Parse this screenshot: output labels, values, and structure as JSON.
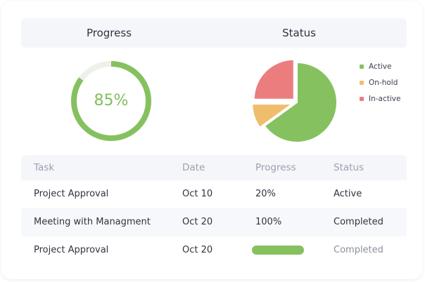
{
  "header": {
    "progress_title": "Progress",
    "status_title": "Status"
  },
  "progress": {
    "label": "85%",
    "value": 85,
    "color": "#86c15f",
    "track_color": "#eef0ec"
  },
  "status_chart": {
    "legend": [
      {
        "label": "Active",
        "color": "#86c15f"
      },
      {
        "label": "On-hold",
        "color": "#f0bd6c"
      },
      {
        "label": "In-active",
        "color": "#ec7d7f"
      }
    ]
  },
  "chart_data": [
    {
      "type": "pie",
      "title": "Progress",
      "values": [
        85,
        15
      ],
      "display": "donut"
    },
    {
      "type": "pie",
      "title": "Status",
      "categories": [
        "Active",
        "On-hold",
        "In-active"
      ],
      "values": [
        65,
        10,
        25
      ],
      "legend_position": "right"
    }
  ],
  "table": {
    "headers": {
      "task": "Task",
      "date": "Date",
      "progress": "Progress",
      "status": "Status"
    },
    "rows": [
      {
        "task": "Project Approval",
        "date": "Oct 10",
        "progress": "20%",
        "status": "Active"
      },
      {
        "task": "Meeting with Managment",
        "date": "Oct 20",
        "progress": "100%",
        "status": "Completed"
      },
      {
        "task": "Project Approval",
        "date": "Oct 20",
        "progress_fraction": 1.0,
        "status": "Completed"
      }
    ]
  }
}
